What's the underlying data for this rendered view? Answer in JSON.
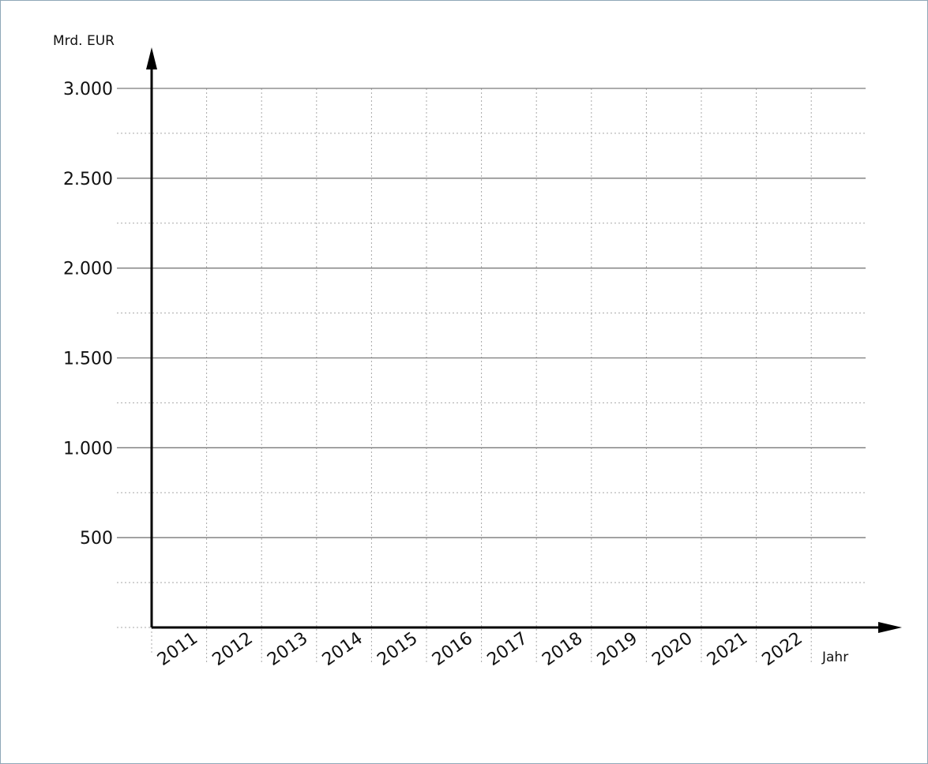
{
  "chart_data": {
    "type": "line",
    "title": "",
    "xlabel": "Jahr",
    "ylabel": "Mrd. EUR",
    "categories": [
      "2011",
      "2012",
      "2013",
      "2014",
      "2015",
      "2016",
      "2017",
      "2018",
      "2019",
      "2020",
      "2021",
      "2022"
    ],
    "yticks": [
      {
        "value": 500,
        "label": "500"
      },
      {
        "value": 1000,
        "label": "1.000"
      },
      {
        "value": 1500,
        "label": "1.500"
      },
      {
        "value": 2000,
        "label": "2.000"
      },
      {
        "value": 2500,
        "label": "2.500"
      },
      {
        "value": 3000,
        "label": "3.000"
      }
    ],
    "ylim": [
      0,
      3000
    ],
    "minor_step": 250,
    "series": [],
    "grid": true,
    "colors": {
      "axis": "#000000",
      "major_grid": "#7a7a7a",
      "minor_grid": "#a8a8a8",
      "frame": "#8fa8b8"
    }
  }
}
